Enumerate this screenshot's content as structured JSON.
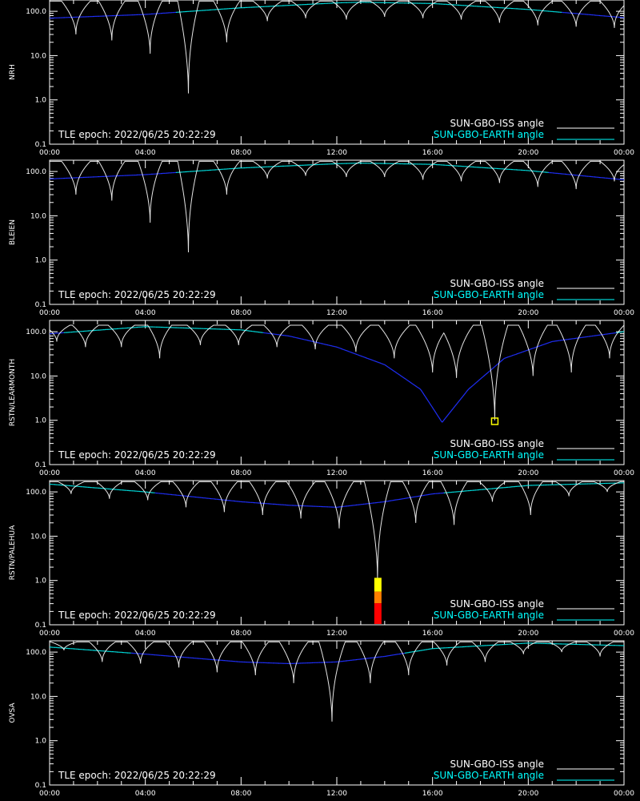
{
  "x_ticks": [
    "00:00",
    "04:00",
    "08:00",
    "12:00",
    "16:00",
    "20:00",
    "00:00"
  ],
  "y_ticks": [
    "100.0",
    "10.0",
    "1.0",
    "0.1"
  ],
  "epoch_text": "TLE epoch: 2022/06/25 20:22:29",
  "legend": {
    "iss": "SUN-GBO-ISS angle",
    "earth": "SUN-GBO-EARTH angle"
  },
  "colors": {
    "iss": "#ffffff",
    "earth_far": "#00e0e0",
    "earth_near": "#2030ff",
    "legend_earth": "#00ffff",
    "marker": "#ffff00",
    "bar_red": "#ff0000",
    "bar_orange": "#ff7f00",
    "bar_yellow": "#ffff00"
  },
  "chart_data": [
    {
      "type": "line",
      "station": "NRH",
      "xlim": [
        0,
        24
      ],
      "ylim": [
        0.1,
        180
      ],
      "yscale": "log",
      "xlabel": "",
      "ylabel": "NRH",
      "earth": {
        "t": [
          0,
          4,
          8,
          12,
          13,
          16,
          20,
          24
        ],
        "v": [
          70,
          85,
          120,
          155,
          160,
          150,
          110,
          72
        ]
      },
      "iss_dips": [
        {
          "t": 1.1,
          "v": 30,
          "w": 0.6
        },
        {
          "t": 2.6,
          "v": 22,
          "w": 0.55
        },
        {
          "t": 4.2,
          "v": 11,
          "w": 0.5
        },
        {
          "t": 5.8,
          "v": 1.4,
          "w": 0.45
        },
        {
          "t": 7.4,
          "v": 20,
          "w": 0.55
        },
        {
          "t": 9.1,
          "v": 60,
          "w": 0.6
        },
        {
          "t": 10.7,
          "v": 70,
          "w": 0.6
        },
        {
          "t": 12.4,
          "v": 65,
          "w": 0.6
        },
        {
          "t": 14.0,
          "v": 75,
          "w": 0.6
        },
        {
          "t": 15.6,
          "v": 70,
          "w": 0.6
        },
        {
          "t": 17.2,
          "v": 65,
          "w": 0.6
        },
        {
          "t": 18.8,
          "v": 55,
          "w": 0.6
        },
        {
          "t": 20.4,
          "v": 48,
          "w": 0.6
        },
        {
          "t": 22.0,
          "v": 45,
          "w": 0.6
        },
        {
          "t": 23.6,
          "v": 42,
          "w": 0.6
        }
      ],
      "peak_v": 170,
      "markers": []
    },
    {
      "type": "line",
      "station": "BLEIEN",
      "xlim": [
        0,
        24
      ],
      "ylim": [
        0.1,
        180
      ],
      "yscale": "log",
      "xlabel": "",
      "ylabel": "BLEIEN",
      "earth": {
        "t": [
          0,
          4,
          8,
          12,
          13,
          16,
          20,
          24
        ],
        "v": [
          68,
          85,
          120,
          150,
          155,
          145,
          105,
          65
        ]
      },
      "iss_dips": [
        {
          "t": 1.1,
          "v": 30,
          "w": 0.6
        },
        {
          "t": 2.6,
          "v": 22,
          "w": 0.55
        },
        {
          "t": 4.2,
          "v": 7,
          "w": 0.5
        },
        {
          "t": 5.8,
          "v": 1.5,
          "w": 0.45
        },
        {
          "t": 7.4,
          "v": 30,
          "w": 0.55
        },
        {
          "t": 9.1,
          "v": 70,
          "w": 0.6
        },
        {
          "t": 10.7,
          "v": 80,
          "w": 0.6
        },
        {
          "t": 12.4,
          "v": 75,
          "w": 0.6
        },
        {
          "t": 14.0,
          "v": 75,
          "w": 0.6
        },
        {
          "t": 15.6,
          "v": 65,
          "w": 0.6
        },
        {
          "t": 17.2,
          "v": 60,
          "w": 0.6
        },
        {
          "t": 18.8,
          "v": 55,
          "w": 0.6
        },
        {
          "t": 20.4,
          "v": 45,
          "w": 0.6
        },
        {
          "t": 22.0,
          "v": 40,
          "w": 0.6
        },
        {
          "t": 23.6,
          "v": 60,
          "w": 0.6
        }
      ],
      "peak_v": 170,
      "markers": []
    },
    {
      "type": "line",
      "station": "RSTN/LEARMONTH",
      "xlim": [
        0,
        24
      ],
      "ylim": [
        0.1,
        180
      ],
      "yscale": "log",
      "xlabel": "",
      "ylabel": "RSTN/LEARMONTH",
      "earth": {
        "t": [
          0,
          4,
          8,
          10,
          12,
          14,
          15.5,
          16.4,
          17.5,
          19,
          21,
          24
        ],
        "v": [
          90,
          130,
          110,
          80,
          45,
          18,
          5,
          0.9,
          5,
          25,
          60,
          100
        ]
      },
      "iss_dips": [
        {
          "t": 0.3,
          "v": 60,
          "w": 0.55
        },
        {
          "t": 1.5,
          "v": 45,
          "w": 0.55
        },
        {
          "t": 3.0,
          "v": 45,
          "w": 0.55
        },
        {
          "t": 4.6,
          "v": 25,
          "w": 0.5
        },
        {
          "t": 6.3,
          "v": 50,
          "w": 0.55
        },
        {
          "t": 7.9,
          "v": 50,
          "w": 0.55
        },
        {
          "t": 9.5,
          "v": 45,
          "w": 0.55
        },
        {
          "t": 11.1,
          "v": 40,
          "w": 0.55
        },
        {
          "t": 12.8,
          "v": 35,
          "w": 0.6
        },
        {
          "t": 14.4,
          "v": 25,
          "w": 0.65
        },
        {
          "t": 16.0,
          "v": 12,
          "w": 0.7
        },
        {
          "t": 17.0,
          "v": 9,
          "w": 0.7
        },
        {
          "t": 18.6,
          "v": 1.0,
          "w": 0.55
        },
        {
          "t": 20.2,
          "v": 10,
          "w": 0.6
        },
        {
          "t": 21.8,
          "v": 12,
          "w": 0.6
        },
        {
          "t": 23.4,
          "v": 25,
          "w": 0.6
        }
      ],
      "peak_v": 140,
      "markers": [
        {
          "t": 18.6,
          "v": 0.95,
          "kind": "box"
        }
      ]
    },
    {
      "type": "line",
      "station": "RSTN/PALEHUA",
      "xlim": [
        0,
        24
      ],
      "ylim": [
        0.1,
        180
      ],
      "yscale": "log",
      "xlabel": "",
      "ylabel": "RSTN/PALEHUA",
      "earth": {
        "t": [
          0,
          4,
          8,
          10,
          12,
          14,
          16,
          20,
          24
        ],
        "v": [
          150,
          100,
          60,
          50,
          45,
          60,
          90,
          140,
          160
        ]
      },
      "iss_dips": [
        {
          "t": 0.9,
          "v": 90,
          "w": 0.55
        },
        {
          "t": 2.5,
          "v": 70,
          "w": 0.55
        },
        {
          "t": 4.1,
          "v": 65,
          "w": 0.55
        },
        {
          "t": 5.7,
          "v": 45,
          "w": 0.55
        },
        {
          "t": 7.3,
          "v": 35,
          "w": 0.55
        },
        {
          "t": 8.9,
          "v": 30,
          "w": 0.55
        },
        {
          "t": 10.5,
          "v": 25,
          "w": 0.6
        },
        {
          "t": 12.1,
          "v": 15,
          "w": 0.6
        },
        {
          "t": 13.7,
          "v": 1.1,
          "w": 0.55
        },
        {
          "t": 15.3,
          "v": 20,
          "w": 0.55
        },
        {
          "t": 16.9,
          "v": 18,
          "w": 0.55
        },
        {
          "t": 18.5,
          "v": 60,
          "w": 0.55
        },
        {
          "t": 20.1,
          "v": 30,
          "w": 0.5
        },
        {
          "t": 21.7,
          "v": 80,
          "w": 0.55
        },
        {
          "t": 23.3,
          "v": 100,
          "w": 0.55
        }
      ],
      "peak_v": 170,
      "markers": [
        {
          "t": 13.7,
          "v": 1.1,
          "kind": "bar"
        }
      ]
    },
    {
      "type": "line",
      "station": "OVSA",
      "xlim": [
        0,
        24
      ],
      "ylim": [
        0.1,
        180
      ],
      "yscale": "log",
      "xlabel": "",
      "ylabel": "OVSA",
      "earth": {
        "t": [
          0,
          4,
          8,
          10,
          12,
          14,
          16,
          20,
          24
        ],
        "v": [
          130,
          90,
          60,
          55,
          60,
          80,
          120,
          160,
          140
        ]
      },
      "iss_dips": [
        {
          "t": 0.6,
          "v": 110,
          "w": 0.55
        },
        {
          "t": 2.2,
          "v": 60,
          "w": 0.55
        },
        {
          "t": 3.8,
          "v": 55,
          "w": 0.55
        },
        {
          "t": 5.4,
          "v": 45,
          "w": 0.55
        },
        {
          "t": 7.0,
          "v": 35,
          "w": 0.55
        },
        {
          "t": 8.6,
          "v": 30,
          "w": 0.55
        },
        {
          "t": 10.2,
          "v": 20,
          "w": 0.6
        },
        {
          "t": 11.8,
          "v": 2.7,
          "w": 0.55
        },
        {
          "t": 13.4,
          "v": 20,
          "w": 0.55
        },
        {
          "t": 15.0,
          "v": 30,
          "w": 0.55
        },
        {
          "t": 16.6,
          "v": 50,
          "w": 0.55
        },
        {
          "t": 18.2,
          "v": 60,
          "w": 0.55
        },
        {
          "t": 19.8,
          "v": 90,
          "w": 0.55
        },
        {
          "t": 21.4,
          "v": 100,
          "w": 0.55
        },
        {
          "t": 23.0,
          "v": 80,
          "w": 0.55
        }
      ],
      "peak_v": 170,
      "markers": []
    }
  ]
}
